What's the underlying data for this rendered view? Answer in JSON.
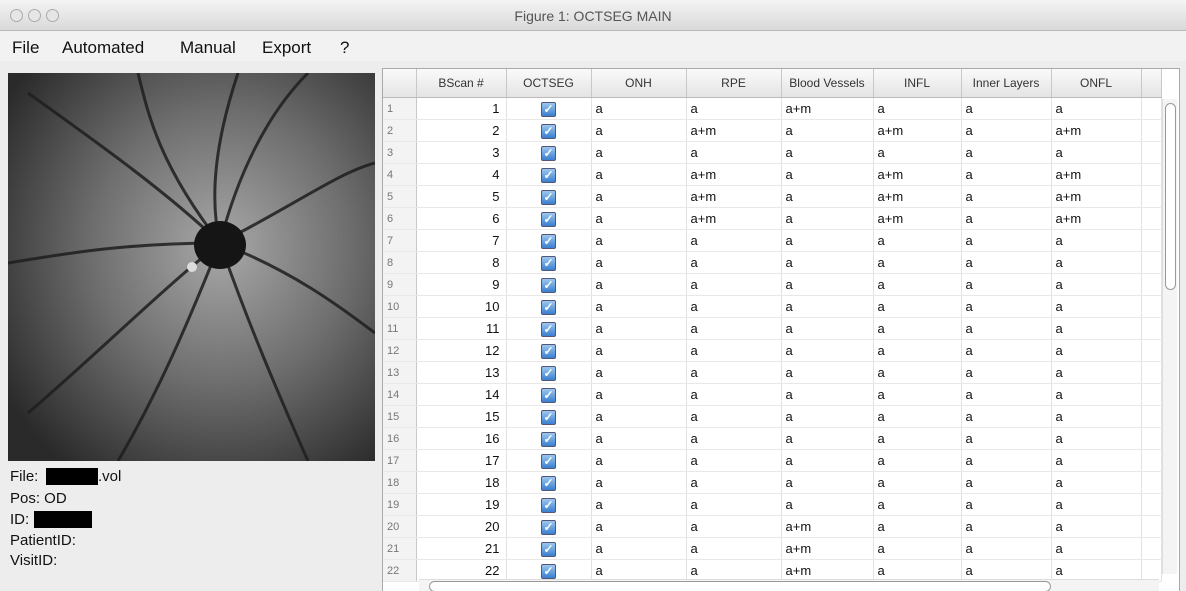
{
  "window": {
    "title": "Figure 1: OCTSEG MAIN"
  },
  "menu": [
    "File",
    "Automated",
    "Manual",
    "Export",
    "?"
  ],
  "info": {
    "file_label": "File:",
    "file_ext": ".vol",
    "pos": "Pos: OD",
    "id_label": "ID:",
    "patient_id": "PatientID:",
    "visit_id": "VisitID:"
  },
  "table": {
    "columns": [
      "BScan #",
      "OCTSEG",
      "ONH",
      "RPE",
      "Blood Vessels",
      "INFL",
      "Inner Layers",
      "ONFL"
    ],
    "rows": [
      [
        1,
        1,
        "a",
        "a",
        "a+m",
        "a",
        "a",
        "a"
      ],
      [
        2,
        2,
        "a",
        "a+m",
        "a",
        "a+m",
        "a",
        "a+m"
      ],
      [
        3,
        3,
        "a",
        "a",
        "a",
        "a",
        "a",
        "a"
      ],
      [
        4,
        4,
        "a",
        "a+m",
        "a",
        "a+m",
        "a",
        "a+m"
      ],
      [
        5,
        5,
        "a",
        "a+m",
        "a",
        "a+m",
        "a",
        "a+m"
      ],
      [
        6,
        6,
        "a",
        "a+m",
        "a",
        "a+m",
        "a",
        "a+m"
      ],
      [
        7,
        7,
        "a",
        "a",
        "a",
        "a",
        "a",
        "a"
      ],
      [
        8,
        8,
        "a",
        "a",
        "a",
        "a",
        "a",
        "a"
      ],
      [
        9,
        9,
        "a",
        "a",
        "a",
        "a",
        "a",
        "a"
      ],
      [
        10,
        10,
        "a",
        "a",
        "a",
        "a",
        "a",
        "a"
      ],
      [
        11,
        11,
        "a",
        "a",
        "a",
        "a",
        "a",
        "a"
      ],
      [
        12,
        12,
        "a",
        "a",
        "a",
        "a",
        "a",
        "a"
      ],
      [
        13,
        13,
        "a",
        "a",
        "a",
        "a",
        "a",
        "a"
      ],
      [
        14,
        14,
        "a",
        "a",
        "a",
        "a",
        "a",
        "a"
      ],
      [
        15,
        15,
        "a",
        "a",
        "a",
        "a",
        "a",
        "a"
      ],
      [
        16,
        16,
        "a",
        "a",
        "a",
        "a",
        "a",
        "a"
      ],
      [
        17,
        17,
        "a",
        "a",
        "a",
        "a",
        "a",
        "a"
      ],
      [
        18,
        18,
        "a",
        "a",
        "a",
        "a",
        "a",
        "a"
      ],
      [
        19,
        19,
        "a",
        "a",
        "a",
        "a",
        "a",
        "a"
      ],
      [
        20,
        20,
        "a",
        "a",
        "a+m",
        "a",
        "a",
        "a"
      ],
      [
        21,
        21,
        "a",
        "a",
        "a+m",
        "a",
        "a",
        "a"
      ],
      [
        22,
        22,
        "a",
        "a",
        "a+m",
        "a",
        "a",
        "a"
      ]
    ]
  }
}
